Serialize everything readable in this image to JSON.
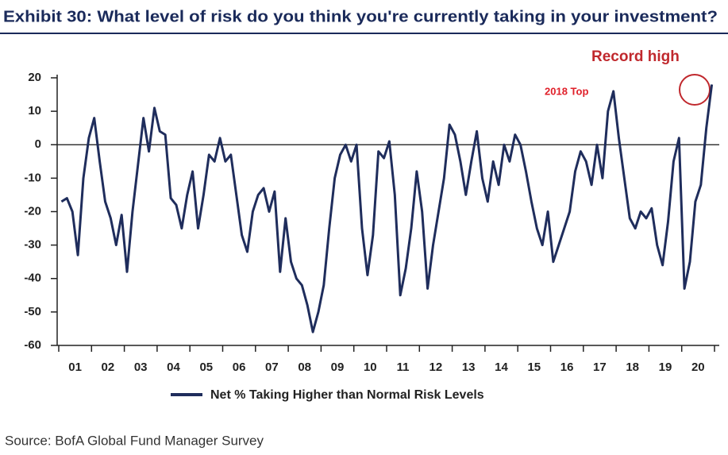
{
  "chart_data": {
    "type": "line",
    "title": "Exhibit 30: What level of risk do you think you're currently taking in your investment?",
    "categories": [
      "01",
      null,
      null,
      null,
      null,
      null,
      "02",
      null,
      null,
      null,
      null,
      null,
      "03",
      null,
      null,
      null,
      null,
      null,
      "04",
      null,
      null,
      null,
      null,
      null,
      "05",
      null,
      null,
      null,
      null,
      null,
      "06",
      null,
      null,
      null,
      null,
      null,
      "07",
      null,
      null,
      null,
      null,
      null,
      "08",
      null,
      null,
      null,
      null,
      null,
      "09",
      null,
      null,
      null,
      null,
      null,
      "10",
      null,
      null,
      null,
      null,
      null,
      "11",
      null,
      null,
      null,
      null,
      null,
      "12",
      null,
      null,
      null,
      null,
      null,
      "13",
      null,
      null,
      null,
      null,
      null,
      "14",
      null,
      null,
      null,
      null,
      null,
      "15",
      null,
      null,
      null,
      null,
      null,
      "16",
      null,
      null,
      null,
      null,
      null,
      "17",
      null,
      null,
      null,
      null,
      null,
      "18",
      null,
      null,
      null,
      null,
      null,
      "19",
      null,
      null,
      null,
      null,
      null,
      "20",
      null,
      null,
      null,
      null,
      null
    ],
    "series": [
      {
        "name": "Net % Taking Higher than Normal Risk Levels",
        "color": "#1f2d5c",
        "values": [
          -17,
          -16,
          -20,
          -33,
          -10,
          2,
          8,
          -5,
          -17,
          -22,
          -30,
          -21,
          -38,
          -20,
          -6,
          8,
          -2,
          11,
          4,
          3,
          -16,
          -18,
          -25,
          -15,
          -8,
          -25,
          -15,
          -3,
          -5,
          2,
          -5,
          -3,
          -15,
          -27,
          -32,
          -20,
          -15,
          -13,
          -20,
          -14,
          -38,
          -22,
          -35,
          -40,
          -42,
          -48,
          -56,
          -50,
          -42,
          -25,
          -10,
          -3,
          0,
          -5,
          0,
          -25,
          -39,
          -27,
          -2,
          -4,
          1,
          -15,
          -45,
          -37,
          -25,
          -8,
          -20,
          -43,
          -30,
          -20,
          -10,
          6,
          3,
          -5,
          -15,
          -5,
          4,
          -10,
          -17,
          -5,
          -12,
          0,
          -5,
          3,
          0,
          -8,
          -17,
          -25,
          -30,
          -20,
          -35,
          -30,
          -25,
          -20,
          -8,
          -2,
          -5,
          -12,
          0,
          -10,
          10,
          16,
          2,
          -10,
          -22,
          -25,
          -20,
          -22,
          -19,
          -30,
          -36,
          -23,
          -5,
          2,
          -43,
          -35,
          -17,
          -12,
          5,
          18
        ]
      }
    ],
    "ylim": [
      -60,
      20
    ],
    "yticks": [
      20,
      10,
      0,
      -10,
      -20,
      -30,
      -40,
      -50,
      -60
    ],
    "annotations": [
      "Record high",
      "2018 Top"
    ],
    "source": "Source: BofA Global Fund Manager Survey"
  }
}
